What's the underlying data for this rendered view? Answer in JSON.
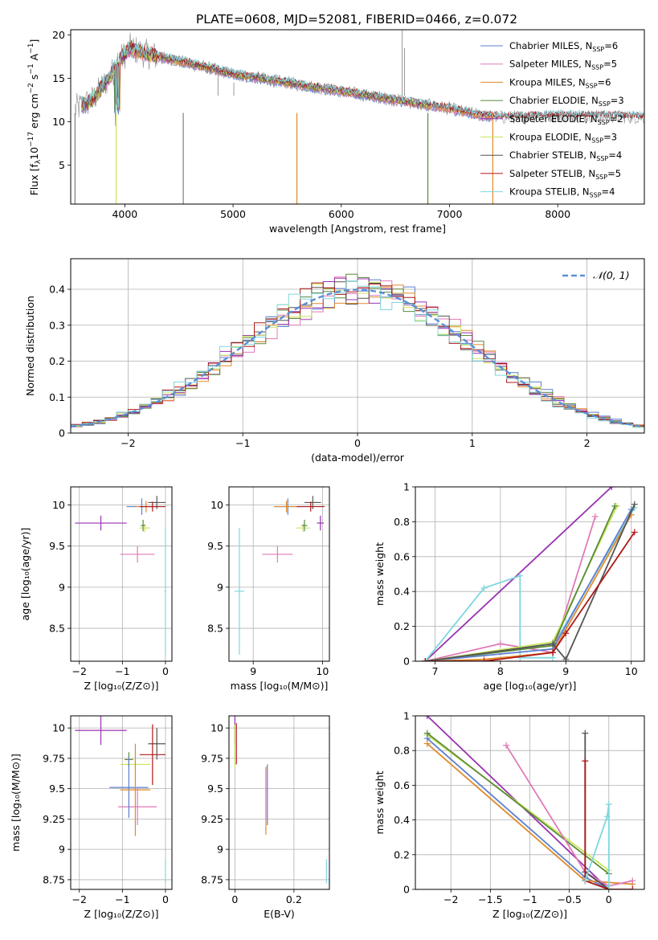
{
  "title": "PLATE=0608, MJD=52081, FIBERID=0466, z=0.072",
  "colors": {
    "chabrier_miles": "#5b7fd0",
    "salpeter_miles": "#e07ab8",
    "kroupa_miles": "#e08a2a",
    "chabrier_elodie": "#5a8a3a",
    "salpeter_elodie": "#9932b0",
    "kroupa_elodie": "#c8e65a",
    "chabrier_stelib": "#555555",
    "salpeter_stelib": "#b01818",
    "kroupa_stelib": "#7fd6de",
    "gauss": "#5b8fd6",
    "data": "#7f7f7f"
  },
  "chart_data": [
    {
      "id": "spectrum",
      "type": "line",
      "xlabel": "wavelength [Angstrom, rest frame]",
      "ylabel": "Flux [f_λ10^-17 erg cm^-2 s^-1 A^-1]",
      "xlim": [
        3500,
        8800
      ],
      "ylim": [
        0.5,
        20.6
      ],
      "xticks": [
        4000,
        5000,
        6000,
        7000,
        8000
      ],
      "yticks": [
        5,
        10,
        15,
        20
      ],
      "grid": false,
      "legend_position": "top-right",
      "legend": [
        "Chabrier MILES, N_SSP=6",
        "Salpeter MILES, N_SSP=5",
        "Kroupa MILES, N_SSP=6",
        "Chabrier ELODIE, N_SSP=3",
        "Salpeter ELODIE, N_SSP=2",
        "Kroupa ELODIE, N_SSP=3",
        "Chabrier STELIB, N_SSP=4",
        "Salpeter STELIB, N_SSP=5",
        "Kroupa STELIB, N_SSP=4"
      ],
      "continuum_wavelength": [
        3550,
        3700,
        3850,
        3950,
        4050,
        4150,
        4300,
        4500,
        5000,
        5500,
        6000,
        6500,
        7000,
        7300,
        7500,
        8000,
        8500,
        8800
      ],
      "continuum_flux": [
        11.5,
        12.5,
        15,
        17,
        18.5,
        18,
        17.5,
        17,
        15.5,
        14.5,
        13.5,
        12.5,
        11.5,
        10.7,
        10.5,
        10.7,
        10.6,
        10.5
      ],
      "emission_lines": [
        {
          "x": 6563,
          "y": 20.6
        },
        {
          "x": 6585,
          "y": 18.5
        },
        {
          "x": 4861,
          "y": 16.5
        },
        {
          "x": 5007,
          "y": 14.5
        }
      ],
      "model_drops": [
        {
          "x": 3920,
          "y": 0.5
        },
        {
          "x": 5590,
          "y": 0.5
        },
        {
          "x": 6800,
          "y": 0.5
        },
        {
          "x": 7400,
          "y": 0.5
        },
        {
          "x": 4540,
          "y": 0.5
        },
        {
          "x": 3540,
          "y": 0.5
        }
      ]
    },
    {
      "id": "residuals",
      "type": "histogram",
      "xlabel": "(data-model)/error",
      "ylabel": "Normed distribution",
      "xlim": [
        -2.5,
        2.5
      ],
      "ylim": [
        0,
        0.485
      ],
      "xticks": [
        -2,
        -1,
        0,
        1,
        2
      ],
      "yticks": [
        0.0,
        0.1,
        0.2,
        0.3,
        0.4
      ],
      "grid": true,
      "legend_position": "top-right",
      "legend": [
        "𝒩(0, 1)"
      ]
    },
    {
      "id": "age_vs_Z",
      "type": "errorbar",
      "xlabel": "Z [log10(Z/Z⊙)]",
      "ylabel": "age  [log10(age/yr)]",
      "xlim": [
        -2.2,
        0.15
      ],
      "ylim": [
        8.1,
        10.22
      ],
      "xticks": [
        -2,
        -1,
        0
      ],
      "yticks": [
        8.5,
        9.0,
        9.5,
        10.0
      ],
      "grid": true,
      "points": [
        {
          "s": "salpeter_elodie",
          "x": -1.5,
          "xe": 0.6,
          "y": 9.78,
          "ye": 0.09
        },
        {
          "s": "kroupa_elodie",
          "x": -0.48,
          "xe": 0.12,
          "y": 9.72,
          "ye": 0.05
        },
        {
          "s": "chabrier_elodie",
          "x": -0.52,
          "xe": 0.05,
          "y": 9.75,
          "ye": 0.07
        },
        {
          "s": "salpeter_miles",
          "x": -0.65,
          "xe": 0.4,
          "y": 9.4,
          "ye": 0.1
        },
        {
          "s": "chabrier_miles",
          "x": -0.55,
          "xe": 0.35,
          "y": 9.98,
          "ye": 0.1
        },
        {
          "s": "kroupa_miles",
          "x": -0.45,
          "xe": 0.25,
          "y": 9.98,
          "ye": 0.07
        },
        {
          "s": "chabrier_stelib",
          "x": -0.2,
          "xe": 0.2,
          "y": 10.03,
          "ye": 0.08
        },
        {
          "s": "salpeter_stelib",
          "x": -0.3,
          "xe": 0.3,
          "y": 9.98,
          "ye": 0.06
        },
        {
          "s": "kroupa_stelib",
          "x": 0.0,
          "xe": 0.02,
          "y": 8.95,
          "ye": 0.77
        }
      ]
    },
    {
      "id": "age_vs_mass",
      "type": "errorbar",
      "xlabel": "mass [log10(M/M⊙)]",
      "ylabel": "",
      "xlim": [
        8.65,
        10.1
      ],
      "ylim": [
        8.1,
        10.22
      ],
      "xticks": [
        9,
        10
      ],
      "yticks": [
        8.5,
        9.0,
        9.5,
        10.0
      ],
      "grid": true,
      "points": [
        {
          "s": "salpeter_elodie",
          "x": 9.97,
          "xe": 0.05,
          "y": 9.78,
          "ye": 0.09
        },
        {
          "s": "kroupa_elodie",
          "x": 9.72,
          "xe": 0.1,
          "y": 9.72,
          "ye": 0.05
        },
        {
          "s": "chabrier_elodie",
          "x": 9.74,
          "xe": 0.04,
          "y": 9.75,
          "ye": 0.07
        },
        {
          "s": "salpeter_miles",
          "x": 9.35,
          "xe": 0.22,
          "y": 9.4,
          "ye": 0.1
        },
        {
          "s": "chabrier_miles",
          "x": 9.5,
          "xe": 0.2,
          "y": 9.98,
          "ye": 0.1
        },
        {
          "s": "kroupa_miles",
          "x": 9.48,
          "xe": 0.18,
          "y": 9.98,
          "ye": 0.07
        },
        {
          "s": "chabrier_stelib",
          "x": 9.86,
          "xe": 0.12,
          "y": 10.03,
          "ye": 0.08
        },
        {
          "s": "salpeter_stelib",
          "x": 9.83,
          "xe": 0.2,
          "y": 9.98,
          "ye": 0.06
        },
        {
          "s": "kroupa_stelib",
          "x": 8.8,
          "xe": 0.07,
          "y": 8.95,
          "ye": 0.77
        }
      ]
    },
    {
      "id": "weight_vs_age",
      "type": "line",
      "xlabel": "age  [log10(age/yr)]",
      "ylabel": "mass weight",
      "xlim": [
        6.7,
        10.2
      ],
      "ylim": [
        0,
        1.0
      ],
      "xticks": [
        7,
        8,
        9,
        10
      ],
      "yticks": [
        0.0,
        0.2,
        0.4,
        0.6,
        0.8,
        1.0
      ],
      "grid": true,
      "series": [
        {
          "s": "salpeter_elodie",
          "x": [
            6.85,
            9.7
          ],
          "y": [
            0.0,
            1.0
          ]
        },
        {
          "s": "kroupa_stelib",
          "x": [
            6.85,
            7.75,
            8.3,
            8.3,
            8.8,
            8.82,
            10.05
          ],
          "y": [
            0.0,
            0.42,
            0.49,
            0.02,
            0.02,
            0.1,
            0.88
          ]
        },
        {
          "s": "salpeter_miles",
          "x": [
            6.85,
            8.0,
            8.8,
            9.45
          ],
          "y": [
            0.0,
            0.1,
            0.05,
            0.83
          ]
        },
        {
          "s": "kroupa_elodie",
          "x": [
            6.85,
            8.8,
            9.78
          ],
          "y": [
            0.0,
            0.11,
            0.89
          ]
        },
        {
          "s": "chabrier_elodie",
          "x": [
            6.85,
            8.8,
            9.75
          ],
          "y": [
            0.0,
            0.09,
            0.89
          ]
        },
        {
          "s": "chabrier_miles",
          "x": [
            6.85,
            8.8,
            10.0
          ],
          "y": [
            0.0,
            0.07,
            0.87
          ]
        },
        {
          "s": "kroupa_miles",
          "x": [
            6.85,
            7.75,
            8.8,
            10.0
          ],
          "y": [
            0.0,
            0.01,
            0.05,
            0.84
          ]
        },
        {
          "s": "chabrier_stelib",
          "x": [
            6.85,
            8.8,
            9.0,
            10.05
          ],
          "y": [
            0.0,
            0.1,
            0.01,
            0.9
          ]
        },
        {
          "s": "salpeter_stelib",
          "x": [
            6.85,
            7.75,
            8.8,
            9.0,
            10.05
          ],
          "y": [
            0.0,
            0.0,
            0.05,
            0.16,
            0.74
          ]
        }
      ]
    },
    {
      "id": "mass_vs_Z",
      "type": "errorbar",
      "xlabel": "Z [log10(Z/Z⊙)]",
      "ylabel": "mass [log10(M/M⊙)]",
      "xlim": [
        -2.2,
        0.15
      ],
      "ylim": [
        8.67,
        10.1
      ],
      "xticks": [
        -2,
        -1,
        0
      ],
      "yticks": [
        8.75,
        9.0,
        9.25,
        9.5,
        9.75,
        10.0
      ],
      "grid": true,
      "points": [
        {
          "s": "salpeter_elodie",
          "x": -1.5,
          "xe": 0.6,
          "y": 9.98,
          "ye": 0.12
        },
        {
          "s": "kroupa_elodie",
          "x": -0.7,
          "xe": 0.35,
          "y": 9.7,
          "ye": 0.05
        },
        {
          "s": "chabrier_elodie",
          "x": -0.85,
          "xe": 0.1,
          "y": 9.74,
          "ye": 0.06
        },
        {
          "s": "salpeter_miles",
          "x": -0.65,
          "xe": 0.45,
          "y": 9.35,
          "ye": 0.15
        },
        {
          "s": "chabrier_miles",
          "x": -0.85,
          "xe": 0.45,
          "y": 9.51,
          "ye": 0.25
        },
        {
          "s": "kroupa_miles",
          "x": -0.7,
          "xe": 0.35,
          "y": 9.49,
          "ye": 0.38
        },
        {
          "s": "chabrier_stelib",
          "x": -0.2,
          "xe": 0.2,
          "y": 9.87,
          "ye": 0.13
        },
        {
          "s": "salpeter_stelib",
          "x": -0.3,
          "xe": 0.3,
          "y": 9.78,
          "ye": 0.25
        },
        {
          "s": "kroupa_stelib",
          "x": 0.0,
          "xe": 0.01,
          "y": 8.82,
          "ye": 0.1
        }
      ]
    },
    {
      "id": "mass_vs_ebv",
      "type": "errorbar",
      "xlabel": "E(B-V)",
      "ylabel": "",
      "xlim": [
        -0.02,
        0.32
      ],
      "ylim": [
        8.67,
        10.1
      ],
      "xticks": [
        0.0,
        0.2
      ],
      "yticks": [
        8.75,
        9.0,
        9.25,
        9.5,
        9.75,
        10.0
      ],
      "grid": true,
      "points": [
        {
          "s": "salpeter_elodie",
          "x": 0.0,
          "xe": 0.0,
          "y": 9.98,
          "ye": 0.12
        },
        {
          "s": "kroupa_elodie",
          "x": 0.0,
          "xe": 0.0,
          "y": 9.85,
          "ye": 0.18
        },
        {
          "s": "salpeter_stelib",
          "x": 0.005,
          "xe": 0.0,
          "y": 9.87,
          "ye": 0.17
        },
        {
          "s": "chabrier_miles",
          "x": 0.11,
          "xe": 0.0,
          "y": 9.45,
          "ye": 0.25
        },
        {
          "s": "kroupa_miles",
          "x": 0.105,
          "xe": 0.0,
          "y": 9.4,
          "ye": 0.28
        },
        {
          "s": "salpeter_miles",
          "x": 0.105,
          "xe": 0.0,
          "y": 9.45,
          "ye": 0.2
        },
        {
          "s": "kroupa_stelib",
          "x": 0.31,
          "xe": 0.0,
          "y": 8.82,
          "ye": 0.1
        }
      ]
    },
    {
      "id": "weight_vs_Z",
      "type": "line",
      "xlabel": "Z [log10(Z/Z⊙)]",
      "ylabel": "mass weight",
      "xlim": [
        -2.45,
        0.45
      ],
      "ylim": [
        0,
        1.0
      ],
      "xticks": [
        -2.0,
        -1.5,
        -1.0,
        -0.5,
        0.0
      ],
      "yticks": [
        0.0,
        0.2,
        0.4,
        0.6,
        0.8,
        1.0
      ],
      "grid": true,
      "series": [
        {
          "s": "salpeter_elodie",
          "x": [
            -2.3,
            0.0
          ],
          "y": [
            1.0,
            0.0
          ]
        },
        {
          "s": "kroupa_elodie",
          "x": [
            -2.3,
            0.0
          ],
          "y": [
            0.89,
            0.11
          ]
        },
        {
          "s": "chabrier_elodie",
          "x": [
            -2.3,
            0.0
          ],
          "y": [
            0.9,
            0.09
          ]
        },
        {
          "s": "chabrier_miles",
          "x": [
            -2.3,
            -0.3,
            0.0
          ],
          "y": [
            0.87,
            0.07,
            0.0
          ]
        },
        {
          "s": "kroupa_miles",
          "x": [
            -2.3,
            -0.3,
            0.3
          ],
          "y": [
            0.84,
            0.05,
            0.03
          ]
        },
        {
          "s": "salpeter_miles",
          "x": [
            -1.3,
            -0.3,
            0.0,
            0.3
          ],
          "y": [
            0.83,
            0.1,
            0.02,
            0.05
          ]
        },
        {
          "s": "chabrier_stelib",
          "x": [
            -0.3,
            -0.3,
            0.0
          ],
          "y": [
            0.9,
            0.1,
            0.0
          ]
        },
        {
          "s": "salpeter_stelib",
          "x": [
            -0.3,
            -0.3,
            0.0,
            0.3
          ],
          "y": [
            0.74,
            0.05,
            0.0,
            0.0
          ]
        },
        {
          "s": "kroupa_stelib",
          "x": [
            -0.3,
            -0.02,
            0.0,
            0.0
          ],
          "y": [
            0.05,
            0.42,
            0.49,
            0.02
          ]
        }
      ]
    }
  ]
}
